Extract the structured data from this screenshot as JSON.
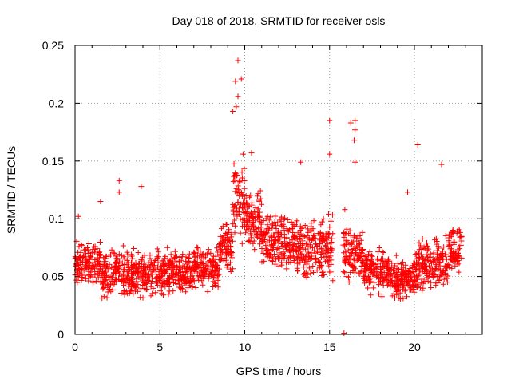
{
  "chart_data": {
    "type": "scatter",
    "title": "Day 018 of 2018, SRMTID for receiver osls",
    "xlabel": "GPS time / hours",
    "ylabel": "SRMTID / TECUs",
    "xlim": [
      0,
      24
    ],
    "ylim": [
      0,
      0.25
    ],
    "xticks": [
      "0",
      "5",
      "10",
      "15",
      "20"
    ],
    "yticks": [
      "0",
      "0.05",
      "0.1",
      "0.15",
      "0.2",
      "0.25"
    ],
    "grid": true,
    "legend": "none",
    "marker": "+",
    "color": "#ff0000",
    "gap": [
      15.2,
      15.8
    ],
    "outliers": [
      {
        "x": 9.6,
        "y": 0.237
      },
      {
        "x": 9.8,
        "y": 0.221
      },
      {
        "x": 9.45,
        "y": 0.219
      },
      {
        "x": 9.6,
        "y": 0.206
      },
      {
        "x": 9.5,
        "y": 0.197
      },
      {
        "x": 9.3,
        "y": 0.193
      },
      {
        "x": 15.0,
        "y": 0.185
      },
      {
        "x": 16.5,
        "y": 0.185
      },
      {
        "x": 16.25,
        "y": 0.183
      },
      {
        "x": 16.5,
        "y": 0.177
      },
      {
        "x": 16.45,
        "y": 0.168
      },
      {
        "x": 20.2,
        "y": 0.164
      },
      {
        "x": 15.0,
        "y": 0.156
      },
      {
        "x": 16.5,
        "y": 0.149
      },
      {
        "x": 13.3,
        "y": 0.149
      },
      {
        "x": 21.6,
        "y": 0.147
      },
      {
        "x": 9.9,
        "y": 0.156
      },
      {
        "x": 10.4,
        "y": 0.157
      },
      {
        "x": 2.6,
        "y": 0.133
      },
      {
        "x": 3.9,
        "y": 0.128
      },
      {
        "x": 2.6,
        "y": 0.123
      },
      {
        "x": 19.6,
        "y": 0.123
      },
      {
        "x": 1.5,
        "y": 0.115
      },
      {
        "x": 15.9,
        "y": 0.108
      },
      {
        "x": 0.2,
        "y": 0.102
      },
      {
        "x": 15.85,
        "y": 0.001
      }
    ],
    "segments": [
      {
        "x0": 0.0,
        "x1": 1.5,
        "base": 0.06,
        "spread": 0.026
      },
      {
        "x0": 1.5,
        "x1": 4.0,
        "base": 0.052,
        "spread": 0.027
      },
      {
        "x0": 4.0,
        "x1": 7.0,
        "base": 0.053,
        "spread": 0.024
      },
      {
        "x0": 7.0,
        "x1": 8.5,
        "base": 0.058,
        "spread": 0.025
      },
      {
        "x0": 8.5,
        "x1": 9.3,
        "base": 0.075,
        "spread": 0.03
      },
      {
        "x0": 9.3,
        "x1": 10.0,
        "base": 0.115,
        "spread": 0.045
      },
      {
        "x0": 10.0,
        "x1": 11.0,
        "base": 0.095,
        "spread": 0.035
      },
      {
        "x0": 11.0,
        "x1": 13.0,
        "base": 0.08,
        "spread": 0.032
      },
      {
        "x0": 13.0,
        "x1": 15.2,
        "base": 0.075,
        "spread": 0.035
      },
      {
        "x0": 15.8,
        "x1": 17.0,
        "base": 0.07,
        "spread": 0.035
      },
      {
        "x0": 17.0,
        "x1": 18.5,
        "base": 0.055,
        "spread": 0.025
      },
      {
        "x0": 18.5,
        "x1": 20.0,
        "base": 0.048,
        "spread": 0.022
      },
      {
        "x0": 20.0,
        "x1": 22.0,
        "base": 0.06,
        "spread": 0.03
      },
      {
        "x0": 22.0,
        "x1": 22.8,
        "base": 0.075,
        "spread": 0.03
      }
    ]
  }
}
